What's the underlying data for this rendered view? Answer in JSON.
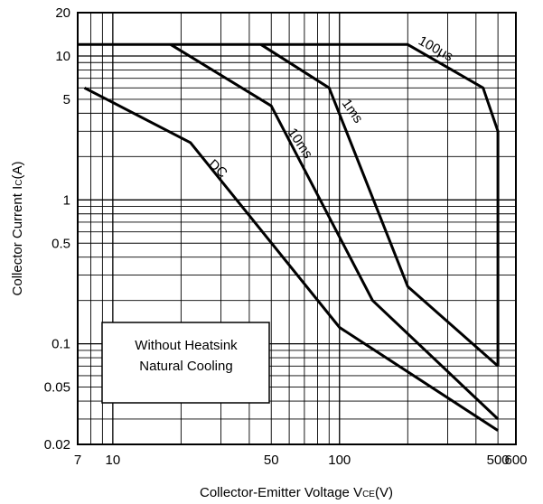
{
  "chart_data": {
    "type": "line",
    "xlabel": "Collector-Emitter Voltage V",
    "xlabel_sub": "CE",
    "xlabel_unit": "(V)",
    "ylabel": "Collector Current I",
    "ylabel_sub": "C",
    "ylabel_unit": "(A)",
    "xscale": "log",
    "yscale": "log",
    "xlim": [
      7,
      600
    ],
    "ylim": [
      0.02,
      20
    ],
    "grid": true,
    "x_tick_labels": [
      "7",
      "10",
      "50",
      "100",
      "500",
      "600"
    ],
    "x_ticks": [
      7,
      10,
      50,
      100,
      500,
      600
    ],
    "y_tick_labels": [
      "20",
      "10",
      "5",
      "1",
      "0.5",
      "0.1",
      "0.05",
      "0.02"
    ],
    "y_ticks": [
      20,
      10,
      5,
      1,
      0.5,
      0.1,
      0.05,
      0.02
    ],
    "series": [
      {
        "name": "100μs",
        "x": [
          7,
          200,
          430,
          500,
          500
        ],
        "y": [
          12,
          12,
          6,
          3,
          0.07
        ]
      },
      {
        "name": "1ms",
        "x": [
          45,
          90,
          200,
          500
        ],
        "y": [
          12,
          6,
          0.25,
          0.07
        ]
      },
      {
        "name": "10ms",
        "x": [
          18,
          50,
          140,
          500
        ],
        "y": [
          12,
          4.5,
          0.2,
          0.03
        ]
      },
      {
        "name": "DC",
        "x": [
          7.5,
          22,
          100,
          500
        ],
        "y": [
          6,
          2.5,
          0.13,
          0.025
        ]
      }
    ],
    "annotation": [
      "Without Heatsink",
      "Natural Cooling"
    ]
  }
}
